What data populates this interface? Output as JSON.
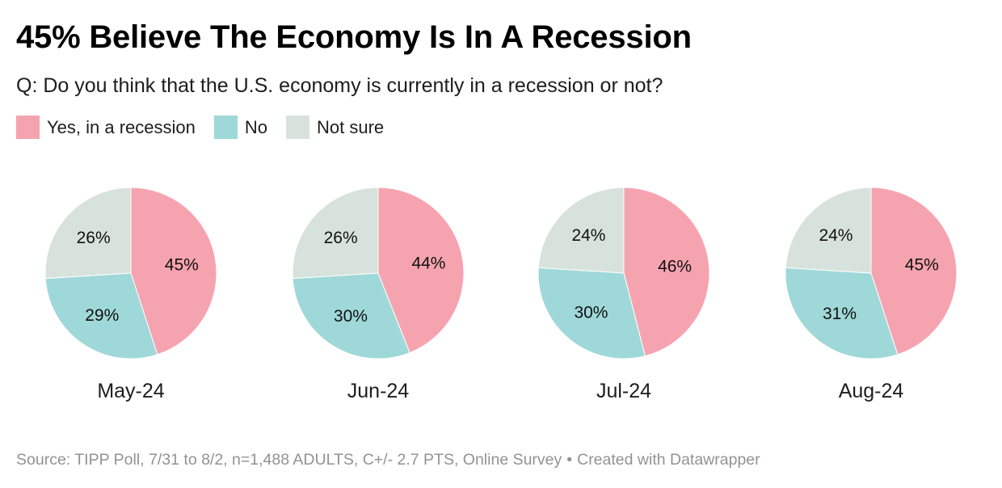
{
  "title": "45% Believe The Economy Is In A Recession",
  "subtitle": "Q: Do you think that the U.S. economy is currently in a recession or not?",
  "legend": [
    {
      "label": "Yes, in a recession",
      "color": "#f6a3b0"
    },
    {
      "label": "No",
      "color": "#9fd8d8"
    },
    {
      "label": "Not sure",
      "color": "#d8e2dd"
    }
  ],
  "chart_data": {
    "type": "pie",
    "series_names": [
      "Yes, in a recession",
      "No",
      "Not sure"
    ],
    "colors": [
      "#f6a3b0",
      "#9fd8d8",
      "#d8e2dd"
    ],
    "charts": [
      {
        "label": "May-24",
        "values": [
          45,
          29,
          26
        ]
      },
      {
        "label": "Jun-24",
        "values": [
          44,
          30,
          26
        ]
      },
      {
        "label": "Jul-24",
        "values": [
          46,
          30,
          24
        ]
      },
      {
        "label": "Aug-24",
        "values": [
          45,
          31,
          24
        ]
      }
    ]
  },
  "footer": {
    "source": "Source: TIPP Poll, 7/31 to 8/2, n=1,488 ADULTS, C+/- 2.7 PTS, Online Survey",
    "separator": "•",
    "credit": "Created with Datawrapper"
  }
}
